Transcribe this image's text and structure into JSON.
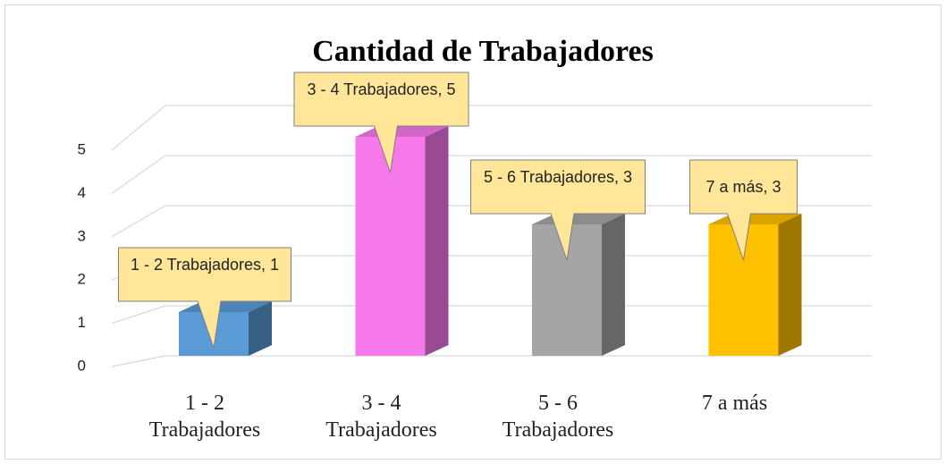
{
  "chart_data": {
    "type": "bar3d",
    "title": "Cantidad de Trabajadores",
    "categories": [
      "1 - 2 Trabajadores",
      "3 - 4 Trabajadores",
      "5 - 6 Trabajadores",
      "7 a más"
    ],
    "values": [
      1,
      5,
      3,
      3
    ],
    "value_labels": [
      "1 - 2 Trabajadores, 1",
      "3 - 4 Trabajadores, 5",
      "5 - 6 Trabajadores, 3",
      "7 a más, 3"
    ],
    "colors": [
      "#5b9bd5",
      "#f679ea",
      "#a5a5a5",
      "#ffc000"
    ],
    "ylim": [
      0,
      5
    ],
    "yticks": [
      0,
      1,
      2,
      3,
      4,
      5
    ],
    "grid": true
  }
}
